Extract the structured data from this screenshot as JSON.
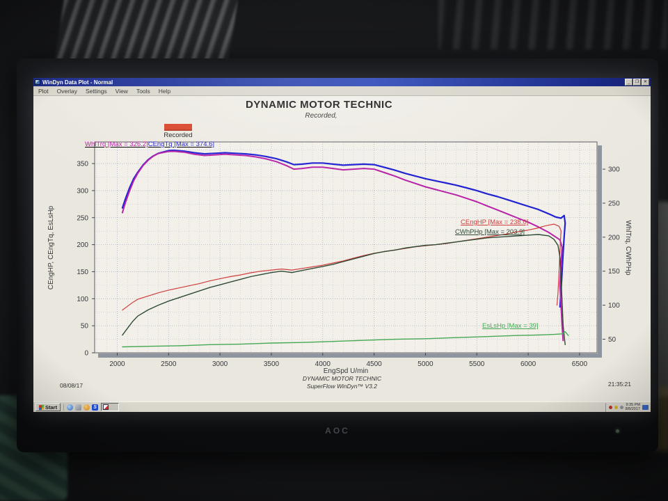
{
  "monitor": {
    "brand": "AOC"
  },
  "window": {
    "title": "WinDyn Data Plot - Normal",
    "menu": [
      "Plot",
      "Overlay",
      "Settings",
      "View",
      "Tools",
      "Help"
    ],
    "controls": {
      "minimize": "_",
      "restore": "❐",
      "close": "✕"
    }
  },
  "icons": {
    "titlebar": "plot-window-icon",
    "taskbar": [
      "windows-flag-icon",
      "browser-globe-icon",
      "app-gray-icon",
      "media-orange-icon",
      "superflow-s-icon",
      "windyn-task-icon"
    ],
    "tray": [
      "alert-red-icon",
      "status-yellow-icon",
      "status-gray-icon",
      "network-blue-icon"
    ]
  },
  "quicklaunch_s_glyph": "S",
  "chart_data": {
    "type": "line",
    "title": "DYNAMIC MOTOR TECHNIC",
    "subtitle": "Recorded,",
    "legend": [
      {
        "label": "Recorded",
        "color": "#d9472b"
      }
    ],
    "xlabel": "EngSpd U/min",
    "xlim": [
      1780,
      6670
    ],
    "x_ticks": [
      2000,
      2500,
      3000,
      3500,
      4000,
      4500,
      5000,
      5500,
      6000,
      6500
    ],
    "left_axis": {
      "label": "CEngHP, CEngTq, EsLsHp",
      "lim": [
        0,
        390
      ],
      "ticks": [
        0,
        50,
        100,
        150,
        200,
        250,
        300,
        350
      ]
    },
    "right_axis": {
      "label": "WhlTrq, CWhPHp",
      "lim": [
        30,
        340
      ],
      "ticks": [
        50,
        100,
        150,
        200,
        250,
        300
      ]
    },
    "grid": "dotted",
    "series": [
      {
        "name": "CEngTq",
        "axis": "left",
        "color": "#2222d2",
        "width": 2.2,
        "max": 374.6,
        "annotation": "CEngTq [Max = 374.6]",
        "points": [
          [
            2050,
            268
          ],
          [
            2080,
            285
          ],
          [
            2120,
            305
          ],
          [
            2160,
            322
          ],
          [
            2200,
            334
          ],
          [
            2250,
            347
          ],
          [
            2300,
            357
          ],
          [
            2350,
            364
          ],
          [
            2400,
            369
          ],
          [
            2500,
            374
          ],
          [
            2550,
            374.6
          ],
          [
            2650,
            373
          ],
          [
            2750,
            370
          ],
          [
            2850,
            368
          ],
          [
            2950,
            369
          ],
          [
            3050,
            370
          ],
          [
            3150,
            369
          ],
          [
            3250,
            368
          ],
          [
            3350,
            366
          ],
          [
            3450,
            363
          ],
          [
            3550,
            359
          ],
          [
            3650,
            353
          ],
          [
            3720,
            348
          ],
          [
            3800,
            349
          ],
          [
            3900,
            351
          ],
          [
            4000,
            351
          ],
          [
            4100,
            349
          ],
          [
            4200,
            347
          ],
          [
            4300,
            348
          ],
          [
            4400,
            349
          ],
          [
            4500,
            348
          ],
          [
            4600,
            343
          ],
          [
            4700,
            338
          ],
          [
            4800,
            332
          ],
          [
            4900,
            327
          ],
          [
            5000,
            322
          ],
          [
            5100,
            318
          ],
          [
            5200,
            314
          ],
          [
            5300,
            310
          ],
          [
            5400,
            305
          ],
          [
            5500,
            300
          ],
          [
            5600,
            294
          ],
          [
            5700,
            289
          ],
          [
            5800,
            283
          ],
          [
            5900,
            277
          ],
          [
            6000,
            271
          ],
          [
            6100,
            265
          ],
          [
            6200,
            257
          ],
          [
            6270,
            251
          ],
          [
            6320,
            249
          ],
          [
            6350,
            254
          ],
          [
            6360,
            240
          ],
          [
            6350,
            215
          ],
          [
            6340,
            185
          ],
          [
            6330,
            150
          ],
          [
            6320,
            115
          ],
          [
            6310,
            85
          ]
        ]
      },
      {
        "name": "WhlTrq",
        "axis": "right",
        "color": "#b822a8",
        "width": 2,
        "max": 326.2,
        "annotation": "WhlTrq [Max = 326.2]",
        "points": [
          [
            2050,
            236
          ],
          [
            2080,
            251
          ],
          [
            2120,
            268
          ],
          [
            2160,
            283
          ],
          [
            2200,
            294
          ],
          [
            2250,
            305
          ],
          [
            2300,
            313
          ],
          [
            2350,
            319
          ],
          [
            2400,
            323
          ],
          [
            2500,
            326
          ],
          [
            2550,
            326.2
          ],
          [
            2650,
            325
          ],
          [
            2750,
            322
          ],
          [
            2850,
            320
          ],
          [
            2950,
            321
          ],
          [
            3050,
            322
          ],
          [
            3150,
            321
          ],
          [
            3250,
            320
          ],
          [
            3350,
            318
          ],
          [
            3450,
            315
          ],
          [
            3550,
            311
          ],
          [
            3650,
            305
          ],
          [
            3720,
            300
          ],
          [
            3800,
            301
          ],
          [
            3900,
            303
          ],
          [
            4000,
            303
          ],
          [
            4100,
            301
          ],
          [
            4200,
            299
          ],
          [
            4300,
            300
          ],
          [
            4400,
            301
          ],
          [
            4500,
            300
          ],
          [
            4600,
            295
          ],
          [
            4700,
            290
          ],
          [
            4800,
            284
          ],
          [
            4900,
            279
          ],
          [
            5000,
            274
          ],
          [
            5100,
            270
          ],
          [
            5200,
            266
          ],
          [
            5300,
            262
          ],
          [
            5400,
            257
          ],
          [
            5500,
            252
          ],
          [
            5600,
            246
          ],
          [
            5700,
            240
          ],
          [
            5800,
            234
          ],
          [
            5900,
            228
          ],
          [
            6000,
            222
          ],
          [
            6100,
            215
          ],
          [
            6200,
            207
          ],
          [
            6270,
            200
          ],
          [
            6310,
            196
          ],
          [
            6330,
            185
          ],
          [
            6320,
            160
          ],
          [
            6310,
            130
          ],
          [
            6320,
            100
          ],
          [
            6330,
            70
          ],
          [
            6340,
            48
          ]
        ]
      },
      {
        "name": "CEngHP",
        "axis": "left",
        "color": "#d03c3c",
        "width": 1.2,
        "max": 238.0,
        "annotation": "CEngHP [Max = 238.0]",
        "points": [
          [
            2050,
            79
          ],
          [
            2100,
            86
          ],
          [
            2150,
            93
          ],
          [
            2200,
            99
          ],
          [
            2300,
            105
          ],
          [
            2400,
            111
          ],
          [
            2500,
            116
          ],
          [
            2600,
            120
          ],
          [
            2700,
            124
          ],
          [
            2800,
            128
          ],
          [
            2900,
            133
          ],
          [
            3000,
            137
          ],
          [
            3100,
            141
          ],
          [
            3200,
            144
          ],
          [
            3300,
            148
          ],
          [
            3400,
            151
          ],
          [
            3500,
            153
          ],
          [
            3600,
            155
          ],
          [
            3700,
            153
          ],
          [
            3800,
            156
          ],
          [
            3900,
            159
          ],
          [
            4000,
            162
          ],
          [
            4100,
            166
          ],
          [
            4200,
            170
          ],
          [
            4300,
            175
          ],
          [
            4400,
            180
          ],
          [
            4500,
            184
          ],
          [
            4600,
            187
          ],
          [
            4700,
            190
          ],
          [
            4800,
            193
          ],
          [
            4900,
            196
          ],
          [
            5000,
            198
          ],
          [
            5100,
            200
          ],
          [
            5200,
            202
          ],
          [
            5300,
            205
          ],
          [
            5400,
            208
          ],
          [
            5500,
            211
          ],
          [
            5600,
            214
          ],
          [
            5700,
            217
          ],
          [
            5800,
            220
          ],
          [
            5900,
            224
          ],
          [
            6000,
            227
          ],
          [
            6100,
            231
          ],
          [
            6150,
            234
          ],
          [
            6200,
            236
          ],
          [
            6250,
            238
          ],
          [
            6300,
            234
          ],
          [
            6320,
            226
          ],
          [
            6310,
            190
          ],
          [
            6300,
            150
          ],
          [
            6290,
            110
          ],
          [
            6280,
            88
          ]
        ]
      },
      {
        "name": "CWhPHp",
        "axis": "right",
        "color": "#2e4a34",
        "width": 1.4,
        "max": 203.9,
        "annotation": "CWhPHp [Max = 203.9]",
        "points": [
          [
            2050,
            56
          ],
          [
            2100,
            66
          ],
          [
            2150,
            76
          ],
          [
            2200,
            84
          ],
          [
            2300,
            93
          ],
          [
            2400,
            100
          ],
          [
            2500,
            106
          ],
          [
            2600,
            111
          ],
          [
            2700,
            116
          ],
          [
            2800,
            121
          ],
          [
            2900,
            126
          ],
          [
            3000,
            130
          ],
          [
            3100,
            134
          ],
          [
            3200,
            138
          ],
          [
            3300,
            142
          ],
          [
            3400,
            145
          ],
          [
            3500,
            148
          ],
          [
            3600,
            150
          ],
          [
            3700,
            148
          ],
          [
            3800,
            151
          ],
          [
            3900,
            154
          ],
          [
            4000,
            157
          ],
          [
            4100,
            160
          ],
          [
            4200,
            164
          ],
          [
            4300,
            168
          ],
          [
            4400,
            172
          ],
          [
            4500,
            176
          ],
          [
            4600,
            179
          ],
          [
            4700,
            181
          ],
          [
            4800,
            184
          ],
          [
            4900,
            186
          ],
          [
            5000,
            188
          ],
          [
            5100,
            189
          ],
          [
            5200,
            191
          ],
          [
            5300,
            193
          ],
          [
            5400,
            195
          ],
          [
            5500,
            197
          ],
          [
            5600,
            199
          ],
          [
            5700,
            200
          ],
          [
            5800,
            201
          ],
          [
            5900,
            202
          ],
          [
            6000,
            203
          ],
          [
            6100,
            203.9
          ],
          [
            6200,
            202
          ],
          [
            6250,
            197
          ],
          [
            6290,
            188
          ],
          [
            6310,
            170
          ],
          [
            6320,
            140
          ],
          [
            6330,
            105
          ],
          [
            6340,
            70
          ],
          [
            6360,
            42
          ]
        ]
      },
      {
        "name": "EsLsHp",
        "axis": "left",
        "color": "#44a854",
        "width": 1.4,
        "max": 39,
        "annotation": "EsLsHp [Max = 39]",
        "points": [
          [
            2050,
            11
          ],
          [
            2300,
            12
          ],
          [
            2600,
            13
          ],
          [
            2900,
            15
          ],
          [
            3200,
            16
          ],
          [
            3500,
            18
          ],
          [
            3800,
            19
          ],
          [
            4100,
            21
          ],
          [
            4400,
            23
          ],
          [
            4700,
            25
          ],
          [
            5000,
            26
          ],
          [
            5300,
            28
          ],
          [
            5600,
            30
          ],
          [
            5900,
            32
          ],
          [
            6100,
            33
          ],
          [
            6250,
            34
          ],
          [
            6330,
            35
          ],
          [
            6360,
            39
          ],
          [
            6390,
            32
          ]
        ]
      }
    ],
    "footer": {
      "date": "08/08/17",
      "center_line1": "DYNAMIC MOTOR TECHNIC",
      "center_line2": "SuperFlow WinDyn™ V3.2",
      "time": "21:35:21"
    }
  },
  "taskbar": {
    "start_label": "Start",
    "tray_time": "9:35 PM",
    "tray_date": "8/8/2017"
  }
}
